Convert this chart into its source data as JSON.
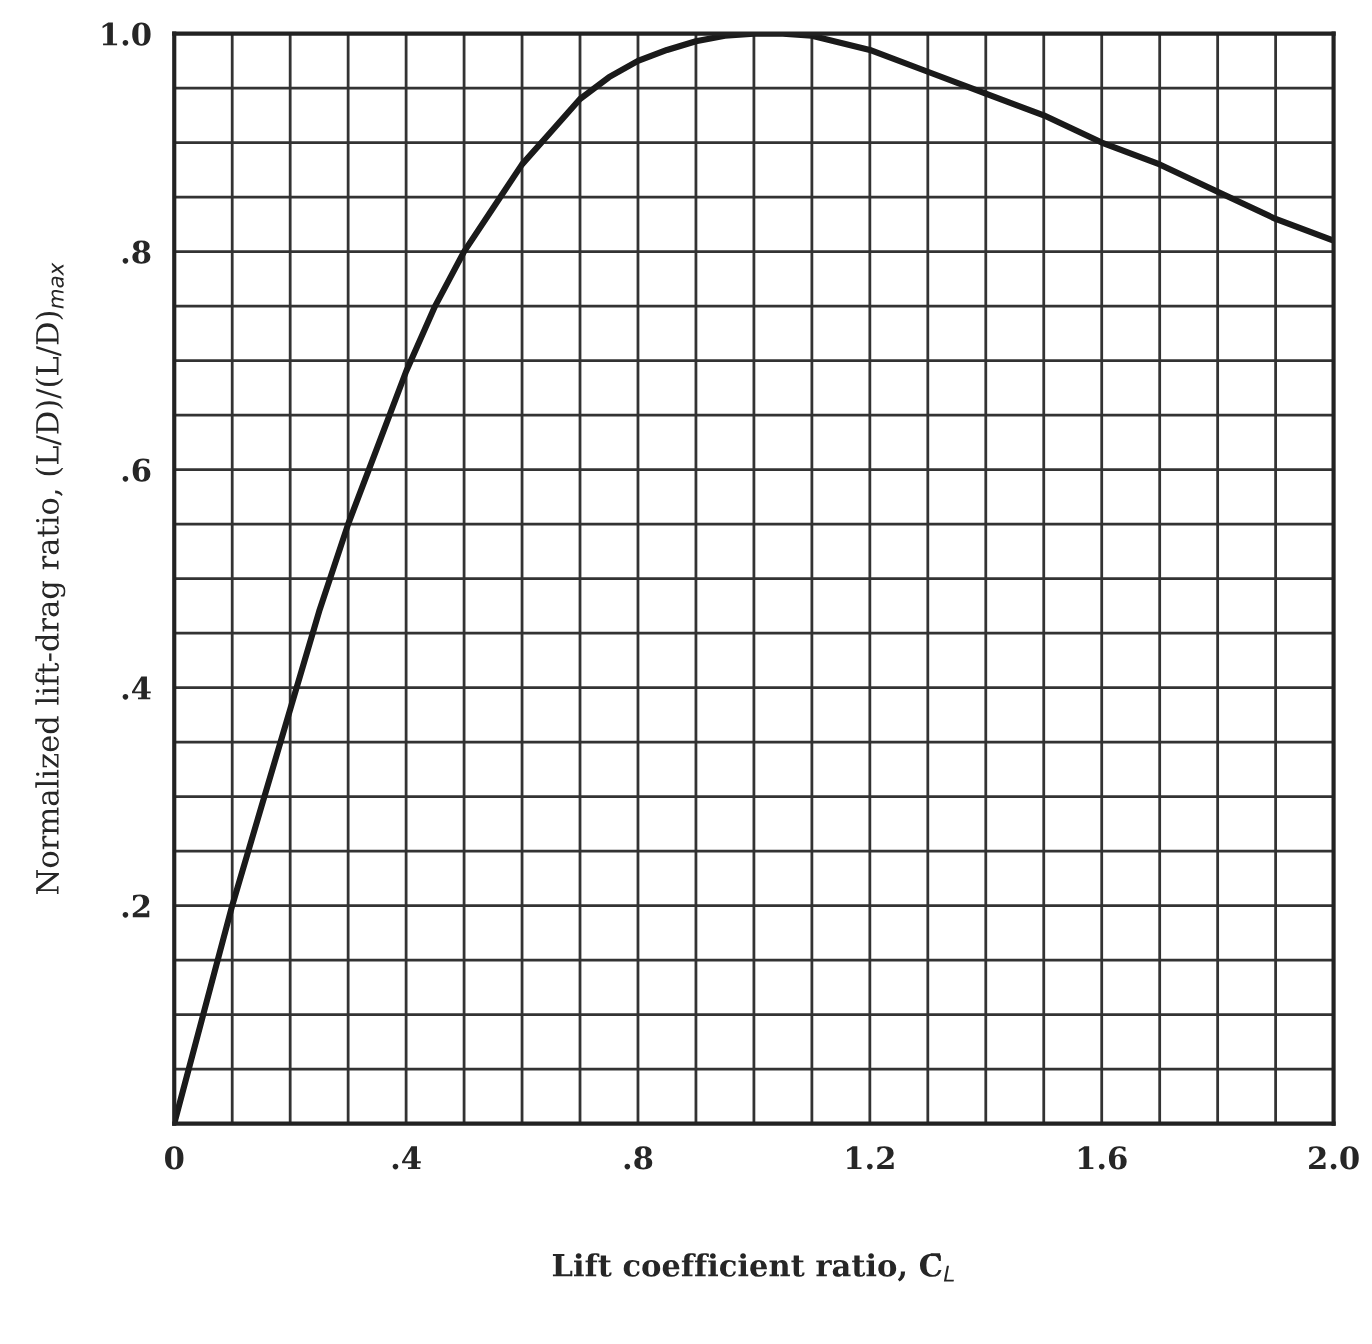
{
  "chart_data": {
    "type": "line",
    "xlabel": "Lift coefficient ratio, C̄$_{L}$",
    "ylabel": "Normalized lift-drag ratio, (L/D)/(L/D)$_{max}$",
    "x": [
      0,
      0.05,
      0.1,
      0.15,
      0.2,
      0.25,
      0.3,
      0.35,
      0.4,
      0.45,
      0.5,
      0.55,
      0.6,
      0.65,
      0.7,
      0.75,
      0.8,
      0.85,
      0.9,
      0.95,
      1.0,
      1.05,
      1.1,
      1.2,
      1.3,
      1.4,
      1.5,
      1.6,
      1.7,
      1.8,
      1.9,
      2.0
    ],
    "series": [
      {
        "color": "#1a1a1a",
        "values": [
          0,
          0.1,
          0.2,
          0.29,
          0.38,
          0.47,
          0.55,
          0.62,
          0.69,
          0.75,
          0.8,
          0.84,
          0.88,
          0.91,
          0.94,
          0.96,
          0.975,
          0.985,
          0.993,
          0.998,
          1.0,
          1.0,
          0.998,
          0.985,
          0.965,
          0.945,
          0.925,
          0.9,
          0.88,
          0.855,
          0.83,
          0.81
        ]
      }
    ],
    "xlim": [
      0,
      2.0
    ],
    "ylim": [
      0,
      1.0
    ],
    "xticks": [
      {
        "value": 0,
        "label": "0"
      },
      {
        "value": 0.1,
        "label": null
      },
      {
        "value": 0.2,
        "label": null
      },
      {
        "value": 0.3,
        "label": null
      },
      {
        "value": 0.4,
        "label": ".4"
      },
      {
        "value": 0.5,
        "label": null
      },
      {
        "value": 0.6,
        "label": null
      },
      {
        "value": 0.7,
        "label": null
      },
      {
        "value": 0.8,
        "label": ".8"
      },
      {
        "value": 0.9,
        "label": null
      },
      {
        "value": 1.0,
        "label": null
      },
      {
        "value": 1.1,
        "label": null
      },
      {
        "value": 1.2,
        "label": "1.2"
      },
      {
        "value": 1.3,
        "label": null
      },
      {
        "value": 1.4,
        "label": null
      },
      {
        "value": 1.5,
        "label": null
      },
      {
        "value": 1.6,
        "label": "1.6"
      },
      {
        "value": 1.7,
        "label": null
      },
      {
        "value": 1.8,
        "label": null
      },
      {
        "value": 1.9,
        "label": null
      },
      {
        "value": 2.0,
        "label": "2.0"
      }
    ],
    "yticks": [
      {
        "value": 0,
        "label": null
      },
      {
        "value": 0.05,
        "label": null
      },
      {
        "value": 0.1,
        "label": null
      },
      {
        "value": 0.15,
        "label": null
      },
      {
        "value": 0.2,
        "label": ".2"
      },
      {
        "value": 0.25,
        "label": null
      },
      {
        "value": 0.3,
        "label": null
      },
      {
        "value": 0.35,
        "label": null
      },
      {
        "value": 0.4,
        "label": ".4"
      },
      {
        "value": 0.45,
        "label": null
      },
      {
        "value": 0.5,
        "label": null
      },
      {
        "value": 0.55,
        "label": null
      },
      {
        "value": 0.6,
        "label": ".6"
      },
      {
        "value": 0.65,
        "label": null
      },
      {
        "value": 0.7,
        "label": null
      },
      {
        "value": 0.75,
        "label": null
      },
      {
        "value": 0.8,
        "label": ".8"
      },
      {
        "value": 0.85,
        "label": null
      },
      {
        "value": 0.9,
        "label": null
      },
      {
        "value": 0.95,
        "label": null
      },
      {
        "value": 1.0,
        "label": "1.0"
      }
    ],
    "grid": true,
    "line_style": "solid",
    "marker": "none"
  }
}
